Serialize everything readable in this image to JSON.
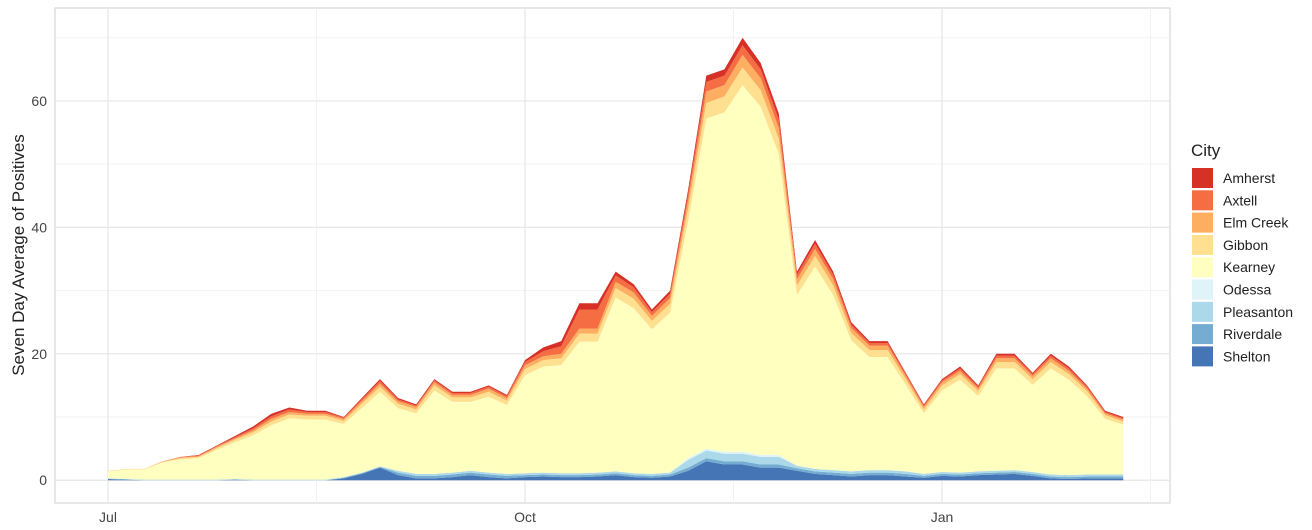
{
  "chart_data": {
    "type": "stacked-area",
    "y_label": "Seven Day Average of Positives",
    "legend_title": "City",
    "legend": "right",
    "grid": true,
    "categories": [
      "Jul",
      null,
      null,
      null,
      null,
      null,
      null,
      null,
      null,
      null,
      null,
      null,
      null,
      null,
      null,
      null,
      null,
      null,
      null,
      null,
      null,
      null,
      null,
      "Oct",
      null,
      null,
      null,
      null,
      null,
      null,
      null,
      null,
      null,
      null,
      null,
      null,
      null,
      null,
      null,
      null,
      null,
      null,
      null,
      null,
      null,
      null,
      "Jan",
      null,
      null,
      null,
      null,
      null,
      null,
      null,
      null,
      null,
      null
    ],
    "ylim": [
      -3.6,
      74.7
    ],
    "yticks": [
      0,
      20,
      40,
      60
    ],
    "series": [
      {
        "name": "Amherst",
        "color": "#d73027",
        "values": [
          0,
          0,
          0,
          0,
          0,
          0.1,
          0.1,
          0.2,
          0.3,
          0.4,
          0.3,
          0.2,
          0.2,
          0.1,
          0.2,
          0.3,
          0.2,
          0.2,
          0.2,
          0.2,
          0.2,
          0.2,
          0.2,
          0.3,
          0.6,
          0.8,
          1,
          1,
          0.6,
          0.5,
          0.4,
          0.5,
          0.7,
          1,
          1,
          1.2,
          1,
          1,
          0.5,
          0.6,
          0.5,
          0.4,
          0.3,
          0.3,
          0.2,
          0.2,
          0.2,
          0.3,
          0.2,
          0.3,
          0.3,
          0.2,
          0.3,
          0.3,
          0.2,
          0.2,
          0.2
        ]
      },
      {
        "name": "Axtell",
        "color": "#f46d43",
        "values": [
          0,
          0,
          0,
          0,
          0.1,
          0.1,
          0.1,
          0.2,
          0.3,
          0.4,
          0.4,
          0.3,
          0.3,
          0.2,
          0.3,
          0.4,
          0.3,
          0.2,
          0.3,
          0.3,
          0.3,
          0.3,
          0.3,
          0.5,
          0.8,
          1.2,
          3,
          3,
          1,
          0.8,
          0.6,
          0.7,
          1,
          1.5,
          1.5,
          1.5,
          1.4,
          1.3,
          0.7,
          0.8,
          0.7,
          0.5,
          0.4,
          0.4,
          0.3,
          0.2,
          0.3,
          0.4,
          0.3,
          0.4,
          0.4,
          0.3,
          0.4,
          0.4,
          0.3,
          0.2,
          0.2
        ]
      },
      {
        "name": "Elm Creek",
        "color": "#fdae61",
        "values": [
          0,
          0,
          0,
          0.1,
          0.1,
          0.1,
          0.2,
          0.2,
          0.3,
          0.4,
          0.4,
          0.3,
          0.3,
          0.3,
          0.4,
          0.5,
          0.4,
          0.4,
          0.5,
          0.4,
          0.4,
          0.5,
          0.4,
          0.6,
          0.6,
          0.7,
          0.8,
          0.8,
          1,
          1,
          0.8,
          0.9,
          1.3,
          1.8,
          1.8,
          2,
          1.9,
          1.7,
          1,
          1.1,
          1,
          0.8,
          0.7,
          0.7,
          0.5,
          0.4,
          0.5,
          0.5,
          0.4,
          0.6,
          0.6,
          0.5,
          0.6,
          0.5,
          0.4,
          0.3,
          0.3
        ]
      },
      {
        "name": "Gibbon",
        "color": "#fee090",
        "values": [
          0.1,
          0.1,
          0.1,
          0.1,
          0.2,
          0.2,
          0.3,
          0.4,
          0.5,
          0.6,
          0.6,
          0.6,
          0.6,
          0.5,
          0.7,
          0.8,
          0.7,
          0.6,
          0.8,
          0.7,
          0.7,
          0.8,
          0.7,
          1,
          1,
          1.1,
          1.3,
          1.3,
          1.5,
          1.5,
          1.3,
          1.4,
          2,
          2.5,
          2.5,
          2.8,
          2.6,
          2.4,
          1.5,
          1.7,
          1.5,
          1.2,
          1.1,
          1.1,
          0.9,
          0.6,
          0.8,
          0.9,
          0.8,
          1,
          1,
          0.9,
          1,
          0.9,
          0.8,
          0.6,
          0.5
        ]
      },
      {
        "name": "Kearney",
        "color": "#ffffbf",
        "values": [
          1.1,
          1.5,
          1.6,
          2.7,
          3.2,
          3.4,
          4.7,
          5.8,
          7,
          8.6,
          9.7,
          9.5,
          9.5,
          8.4,
          10.2,
          11.8,
          9.9,
          9.6,
          13.2,
          11.2,
          10.9,
          12,
          10.9,
          15.5,
          16.8,
          17.1,
          20.8,
          20.7,
          27.5,
          26.1,
          22.9,
          25.3,
          37.5,
          52.2,
          53.7,
          58,
          55.1,
          47.6,
          27,
          32,
          27.7,
          20.7,
          17.9,
          17.9,
          13.7,
          9.6,
          12.9,
          14.7,
          11.9,
          16.2,
          16.1,
          13.8,
          16.8,
          15.1,
          12.4,
          8.8,
          7.9
        ]
      },
      {
        "name": "Odessa",
        "color": "#e0f3f8",
        "values": [
          0,
          0,
          0,
          0,
          0,
          0,
          0,
          0,
          0,
          0,
          0,
          0,
          0,
          0,
          0,
          0,
          0,
          0,
          0,
          0,
          0,
          0,
          0,
          0,
          0,
          0,
          0,
          0,
          0,
          0,
          0,
          0,
          0.3,
          0.3,
          0.3,
          0.3,
          0.3,
          0.3,
          0,
          0,
          0,
          0,
          0,
          0,
          0,
          0,
          0,
          0,
          0,
          0,
          0,
          0,
          0,
          0,
          0,
          0,
          0
        ]
      },
      {
        "name": "Pleasanton",
        "color": "#abd9e9",
        "values": [
          0.1,
          0.1,
          0.1,
          0.1,
          0.1,
          0.1,
          0.1,
          0.1,
          0.1,
          0.1,
          0.1,
          0.1,
          0.1,
          0.1,
          0.1,
          0.1,
          0.3,
          0.3,
          0.3,
          0.3,
          0.3,
          0.3,
          0.3,
          0.3,
          0.3,
          0.3,
          0.3,
          0.3,
          0.3,
          0.3,
          0.3,
          0.3,
          1.2,
          1.2,
          1.2,
          1.2,
          1.2,
          1.2,
          0.4,
          0.4,
          0.4,
          0.4,
          0.4,
          0.4,
          0.4,
          0.3,
          0.3,
          0.3,
          0.3,
          0.3,
          0.3,
          0.3,
          0.3,
          0.3,
          0.3,
          0.3,
          0.3
        ]
      },
      {
        "name": "Riverdale",
        "color": "#74add1",
        "values": [
          0,
          0,
          0,
          0,
          0,
          0,
          0,
          0,
          0,
          0,
          0,
          0,
          0,
          0.1,
          0.1,
          0.1,
          0.4,
          0.4,
          0.4,
          0.4,
          0.4,
          0.4,
          0.4,
          0.3,
          0.3,
          0.3,
          0.3,
          0.3,
          0.3,
          0.3,
          0.3,
          0.3,
          0.5,
          0.5,
          0.5,
          0.5,
          0.5,
          0.5,
          0.4,
          0.4,
          0.4,
          0.4,
          0.4,
          0.4,
          0.4,
          0.3,
          0.3,
          0.3,
          0.3,
          0.3,
          0.3,
          0.3,
          0.3,
          0.3,
          0.3,
          0.3,
          0.3
        ]
      },
      {
        "name": "Shelton",
        "color": "#4575b4",
        "values": [
          0.2,
          0.1,
          0,
          0,
          0,
          0,
          0,
          0.1,
          0,
          0,
          0,
          0,
          0,
          0.3,
          1,
          2,
          0.8,
          0.3,
          0.3,
          0.5,
          0.8,
          0.5,
          0.3,
          0.5,
          0.6,
          0.5,
          0.5,
          0.6,
          0.8,
          0.5,
          0.4,
          0.6,
          1.5,
          3,
          2.5,
          2.5,
          2,
          2,
          1.5,
          1,
          0.8,
          0.6,
          0.8,
          0.8,
          0.6,
          0.4,
          0.7,
          0.6,
          0.8,
          0.9,
          1,
          0.7,
          0.3,
          0.2,
          0.3,
          0.3,
          0.3
        ]
      }
    ]
  }
}
